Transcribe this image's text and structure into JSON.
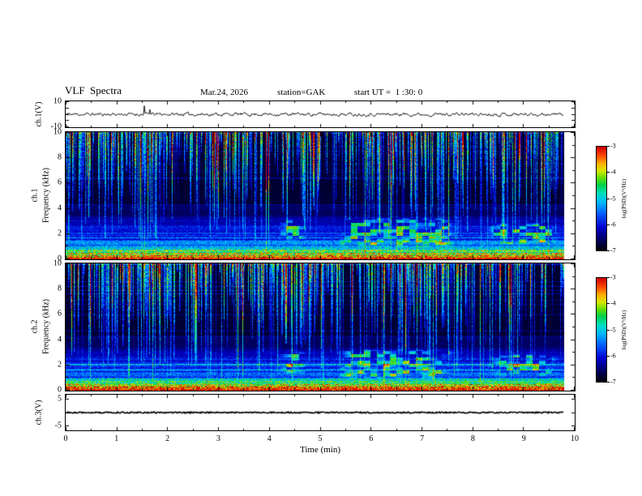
{
  "header": {
    "title": "VLF  Spectra",
    "date": "Mar.24, 2026",
    "station": "station=GAK",
    "start_ut": "start UT =  1 :30: 0"
  },
  "xaxis": {
    "label": "Time (min)",
    "min": 0,
    "max": 10,
    "ticks": [
      0,
      1,
      2,
      3,
      4,
      5,
      6,
      7,
      8,
      9,
      10
    ],
    "data_end": 9.8
  },
  "panels": {
    "ch1_wave": {
      "ylabel": "ch.1(V)",
      "ylim": [
        -10,
        10
      ],
      "yticks": [
        10,
        -10
      ]
    },
    "ch1_spec": {
      "channel": "ch.1",
      "axis_label": "Frequency (kHz)",
      "ylim": [
        0,
        10
      ],
      "yticks": [
        0,
        2,
        4,
        6,
        8,
        10
      ]
    },
    "ch2_spec": {
      "channel": "ch.2",
      "axis_label": "Frequency (kHz)",
      "ylim": [
        0,
        10
      ],
      "yticks": [
        0,
        2,
        4,
        6,
        8,
        10
      ]
    },
    "ch3_wave": {
      "ylabel": "ch.3(V)",
      "ylim": [
        -6.5,
        6.5
      ],
      "yticks": [
        5,
        -5
      ]
    }
  },
  "colorbar": {
    "label": "log(PSD)(V²/Hz)",
    "range": [
      -3,
      -7
    ],
    "ticks": [
      -3,
      -4,
      -5,
      -6,
      -7
    ],
    "gradient": [
      [
        0.0,
        "#000005"
      ],
      [
        0.1,
        "#000060"
      ],
      [
        0.22,
        "#0000d0"
      ],
      [
        0.34,
        "#0055ff"
      ],
      [
        0.46,
        "#00b8ff"
      ],
      [
        0.55,
        "#00e0c0"
      ],
      [
        0.63,
        "#00d050"
      ],
      [
        0.7,
        "#60e000"
      ],
      [
        0.77,
        "#d8e800"
      ],
      [
        0.84,
        "#ffb000"
      ],
      [
        0.91,
        "#ff5000"
      ],
      [
        1.0,
        "#d00000"
      ]
    ]
  },
  "chart_data": [
    {
      "type": "line",
      "name": "ch.1 voltage waveform",
      "ylabel": "ch.1(V)",
      "ylim": [
        -10,
        10
      ],
      "xlim": [
        0,
        10
      ],
      "data_xmax": 9.8,
      "noise_v": 1.2,
      "spikes": [
        {
          "t": 1.55,
          "v": 7
        },
        {
          "t": 1.66,
          "v": 4
        }
      ],
      "description": "Thin black noisy trace centred near 0 V with ~±1.5 V fluctuations and occasional spikes up to ~7 V near 1.5-1.7 min, spanning 0-9.8 min."
    },
    {
      "type": "heatmap",
      "name": "ch.1 VLF spectrogram",
      "ylabel": "ch.1 Frequency (kHz)",
      "ylim": [
        0,
        10
      ],
      "xlim": [
        0,
        10
      ],
      "data_xmax": 9.8,
      "zlabel": "log(PSD)(V²/Hz)",
      "zlim": [
        -7,
        -3
      ],
      "enhancement_regions": [
        {
          "t0": 4.15,
          "t1": 4.75,
          "f0": 1.3,
          "f1": 3.2
        },
        {
          "t0": 5.35,
          "t1": 7.65,
          "f0": 0.9,
          "f1": 3.3
        },
        {
          "t0": 8.3,
          "t1": 9.7,
          "f0": 1.1,
          "f1": 2.9
        }
      ],
      "features": [
        "intense red/orange band below ~0.5 kHz (PSD near -3.5)",
        "yellow-green band 0.5-1 kHz",
        "structured cyan/blue horizontal banding 1-2.7 kHz",
        "dark blue/black background above ~4 kHz (PSD near -7)",
        "dense vertical sferic streaks descending from 10 kHz (blue-cyan-green)",
        "patchy green enhancements 1-3 kHz near 4.2-4.7, 5.4-7.6 and 8.3-9.7 min"
      ]
    },
    {
      "type": "heatmap",
      "name": "ch.2 VLF spectrogram",
      "ylabel": "ch.2 Frequency (kHz)",
      "ylim": [
        0,
        10
      ],
      "xlim": [
        0,
        10
      ],
      "data_xmax": 9.8,
      "zlabel": "log(PSD)(V²/Hz)",
      "zlim": [
        -7,
        -3
      ],
      "enhancement_regions": [
        {
          "t0": 4.15,
          "t1": 4.75,
          "f0": 1.3,
          "f1": 3.2
        },
        {
          "t0": 5.35,
          "t1": 7.65,
          "f0": 0.9,
          "f1": 3.3
        },
        {
          "t0": 8.3,
          "t1": 9.7,
          "f0": 1.1,
          "f1": 2.9
        }
      ],
      "features": [
        "same sferic streak population and low-frequency bands as ch.1",
        "patchy green enhancements 1-3 kHz near 4.2-4.7, 5.4-7.6 and 8.3-9.7 min"
      ]
    },
    {
      "type": "line",
      "name": "ch.3 voltage waveform",
      "ylabel": "ch.3(V)",
      "yticks": [
        5,
        -5
      ],
      "xlim": [
        0,
        10
      ],
      "data_xmax": 9.8,
      "description": "Flat thick dark trace at ~0 V for the whole record."
    }
  ]
}
